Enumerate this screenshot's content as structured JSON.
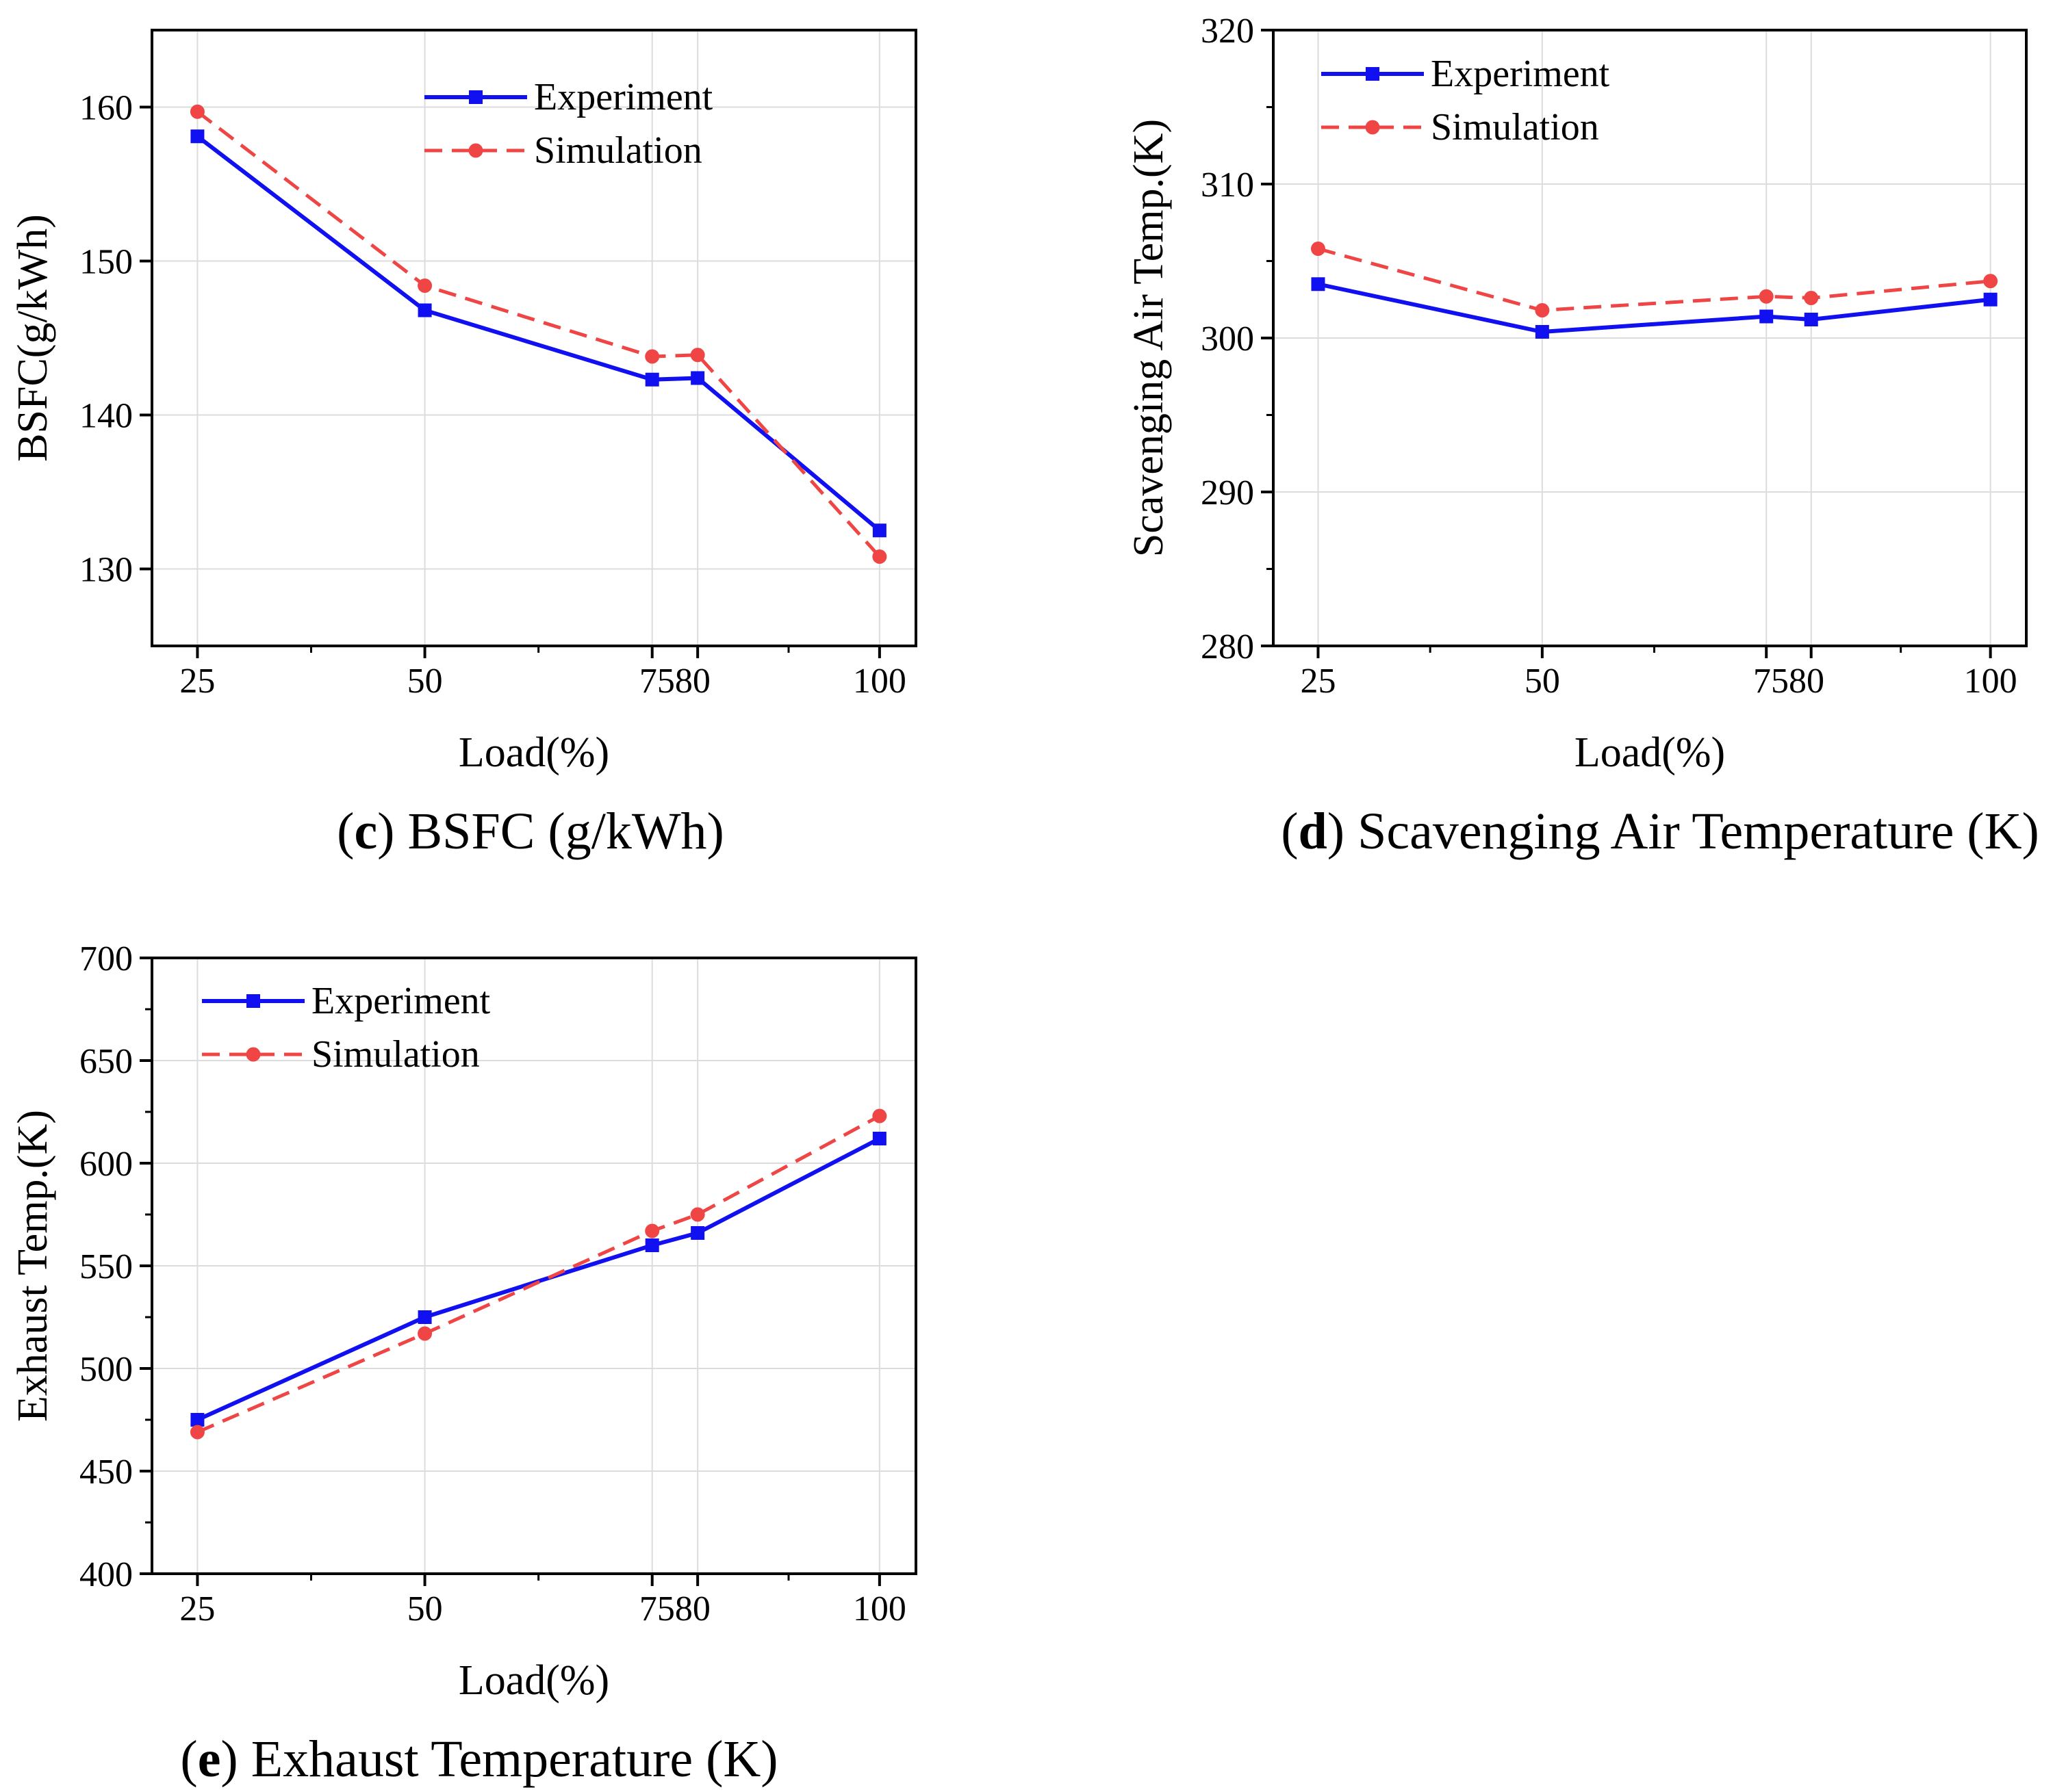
{
  "legend": {
    "experiment": "Experiment",
    "simulation": "Simulation"
  },
  "colors": {
    "experiment": "#1010f0",
    "simulation": "#f04545",
    "grid": "#dcdcdc",
    "axis": "#000000"
  },
  "chart_data": [
    {
      "id": "c",
      "type": "line",
      "ylabel": "BSFC(g/kWh)",
      "xlabel": "Load(%)",
      "caption_letter": "c",
      "caption_text": "BSFC (g/kWh)",
      "x": [
        25,
        50,
        75,
        80,
        100
      ],
      "xlim": [
        20,
        104
      ],
      "xticks": [
        25,
        50,
        75,
        80,
        100
      ],
      "ylim": [
        125,
        165
      ],
      "yticks": [
        130,
        140,
        150,
        160
      ],
      "ytick_labels": [
        "130",
        "140",
        "150",
        "160"
      ],
      "series": [
        {
          "name": "Experiment",
          "values": [
            158.1,
            146.8,
            142.3,
            142.4,
            132.5
          ]
        },
        {
          "name": "Simulation",
          "values": [
            159.7,
            148.4,
            143.8,
            143.9,
            130.8
          ]
        }
      ]
    },
    {
      "id": "d",
      "type": "line",
      "ylabel": "Scavenging Air Temp.(K)",
      "xlabel": "Load(%)",
      "caption_letter": "d",
      "caption_text": "Scavenging Air Temperature (K)",
      "x": [
        25,
        50,
        75,
        80,
        100
      ],
      "xlim": [
        20,
        104
      ],
      "xticks": [
        25,
        50,
        75,
        80,
        100
      ],
      "ylim": [
        280,
        320
      ],
      "yticks": [
        280,
        290,
        300,
        310,
        320
      ],
      "ytick_labels": [
        "280",
        "290",
        "300",
        "310",
        "320"
      ],
      "series": [
        {
          "name": "Experiment",
          "values": [
            303.5,
            300.4,
            301.4,
            301.2,
            302.5
          ]
        },
        {
          "name": "Simulation",
          "values": [
            305.8,
            301.8,
            302.7,
            302.6,
            303.7
          ]
        }
      ]
    },
    {
      "id": "e",
      "type": "line",
      "ylabel": "Exhaust Temp.(K)",
      "xlabel": "Load(%)",
      "caption_letter": "e",
      "caption_text": "Exhaust Temperature (K)",
      "x": [
        25,
        50,
        75,
        80,
        100
      ],
      "xlim": [
        20,
        104
      ],
      "xticks": [
        25,
        50,
        75,
        80,
        100
      ],
      "ylim": [
        400,
        700
      ],
      "yticks": [
        400,
        450,
        500,
        550,
        600,
        650,
        700
      ],
      "ytick_labels": [
        "400",
        "450",
        "500",
        "550",
        "600",
        "650",
        "700"
      ],
      "series": [
        {
          "name": "Experiment",
          "values": [
            475,
            525,
            560,
            566,
            612
          ]
        },
        {
          "name": "Simulation",
          "values": [
            469,
            517,
            567,
            575,
            623
          ]
        }
      ]
    }
  ],
  "xtick_labels": [
    "25",
    "50",
    "7580",
    "100"
  ]
}
